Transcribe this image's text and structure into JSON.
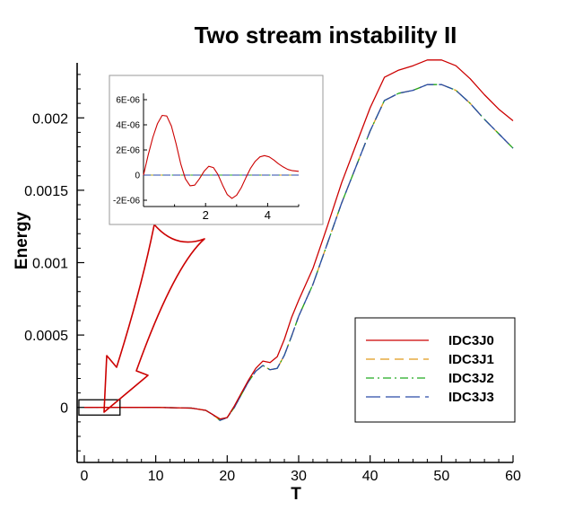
{
  "chart_data": {
    "type": "line",
    "title": "Two stream instability II",
    "xlabel": "T",
    "ylabel": "Energy",
    "xlim": [
      -1,
      60
    ],
    "ylim": [
      -0.00038,
      0.00238
    ],
    "xticks": [
      0,
      10,
      20,
      30,
      40,
      50,
      60
    ],
    "yticks": [
      0,
      0.0005,
      0.001,
      0.0015,
      0.002
    ],
    "ytick_labels": [
      "0",
      "0.0005",
      "0.001",
      "0.0015",
      "0.002"
    ],
    "legend_position": "bottom-right",
    "series": [
      {
        "name": "IDC3J0",
        "color": "#cc0000",
        "dash": "solid",
        "x": [
          0,
          2,
          5,
          10,
          15,
          17,
          18,
          19,
          20,
          21,
          22,
          23,
          24,
          25,
          26,
          27,
          28,
          29,
          30,
          32,
          34,
          36,
          38,
          40,
          42,
          44,
          46,
          48,
          50,
          52,
          54,
          56,
          58,
          60
        ],
        "y": [
          0,
          0,
          0,
          0,
          -5e-06,
          -2e-05,
          -5e-05,
          -8e-05,
          -7e-05,
          1e-05,
          0.0001,
          0.00019,
          0.00027,
          0.00032,
          0.00031,
          0.00035,
          0.00047,
          0.00062,
          0.00074,
          0.00096,
          0.00125,
          0.00155,
          0.00181,
          0.00207,
          0.00228,
          0.00233,
          0.00236,
          0.0024,
          0.0024,
          0.00236,
          0.00227,
          0.00216,
          0.00206,
          0.00198
        ]
      },
      {
        "name": "IDC3J1",
        "color": "#e09a1a",
        "dash": "dashed",
        "x": [
          0,
          2,
          5,
          10,
          15,
          17,
          18,
          19,
          20,
          21,
          22,
          23,
          24,
          25,
          26,
          27,
          28,
          29,
          30,
          32,
          34,
          36,
          38,
          40,
          42,
          44,
          46,
          48,
          50,
          52,
          54,
          56,
          58,
          60
        ],
        "y": [
          0,
          0,
          0,
          0,
          -5e-06,
          -2e-05,
          -5e-05,
          -9e-05,
          -7e-05,
          0,
          9e-05,
          0.00018,
          0.00025,
          0.00029,
          0.00026,
          0.00027,
          0.00036,
          0.00049,
          0.00063,
          0.00085,
          0.00113,
          0.00141,
          0.00166,
          0.00191,
          0.00212,
          0.00217,
          0.00219,
          0.00223,
          0.00223,
          0.00219,
          0.0021,
          0.00199,
          0.00189,
          0.00179
        ]
      },
      {
        "name": "IDC3J2",
        "color": "#22aa22",
        "dash": "dashdot",
        "x": [
          0,
          2,
          5,
          10,
          15,
          17,
          18,
          19,
          20,
          21,
          22,
          23,
          24,
          25,
          26,
          27,
          28,
          29,
          30,
          32,
          34,
          36,
          38,
          40,
          42,
          44,
          46,
          48,
          50,
          52,
          54,
          56,
          58,
          60
        ],
        "y": [
          0,
          0,
          0,
          0,
          -5e-06,
          -2e-05,
          -5e-05,
          -9e-05,
          -7e-05,
          0,
          9e-05,
          0.00018,
          0.00025,
          0.00029,
          0.00026,
          0.00027,
          0.00036,
          0.00049,
          0.00063,
          0.00085,
          0.00113,
          0.00141,
          0.00166,
          0.00191,
          0.00212,
          0.00217,
          0.00219,
          0.00223,
          0.00223,
          0.00219,
          0.0021,
          0.00199,
          0.00189,
          0.00179
        ]
      },
      {
        "name": "IDC3J3",
        "color": "#2a4aa8",
        "dash": "longdash",
        "x": [
          0,
          2,
          5,
          10,
          15,
          17,
          18,
          19,
          20,
          21,
          22,
          23,
          24,
          25,
          26,
          27,
          28,
          29,
          30,
          32,
          34,
          36,
          38,
          40,
          42,
          44,
          46,
          48,
          50,
          52,
          54,
          56,
          58,
          60
        ],
        "y": [
          0,
          0,
          0,
          0,
          -5e-06,
          -2e-05,
          -5e-05,
          -9e-05,
          -7e-05,
          0,
          9e-05,
          0.00018,
          0.00025,
          0.00029,
          0.00026,
          0.00027,
          0.00036,
          0.00049,
          0.00063,
          0.00085,
          0.00113,
          0.00141,
          0.00166,
          0.00191,
          0.00212,
          0.00217,
          0.00219,
          0.00223,
          0.00223,
          0.00219,
          0.0021,
          0.00199,
          0.00189,
          0.00179
        ]
      }
    ],
    "zoom_region": {
      "xlim": [
        0,
        5
      ],
      "ylim": [
        -2.8e-05,
        2.8e-05
      ]
    },
    "inset": {
      "type": "line",
      "xlim": [
        0,
        5
      ],
      "ylim": [
        -2.5e-06,
        6.5e-06
      ],
      "xticks": [
        2,
        4
      ],
      "xtick_labels": [
        "2",
        "4"
      ],
      "yticks": [
        -2e-06,
        0,
        2e-06,
        4e-06,
        6e-06
      ],
      "ytick_labels": [
        "-2E-06",
        "0",
        "2E-06",
        "4E-06",
        "6E-06"
      ],
      "series": [
        {
          "name": "IDC3J0",
          "color": "#cc0000",
          "dash": "solid",
          "x": [
            0,
            0.15,
            0.3,
            0.45,
            0.6,
            0.75,
            0.9,
            1.05,
            1.2,
            1.35,
            1.5,
            1.65,
            1.8,
            1.95,
            2.1,
            2.25,
            2.4,
            2.55,
            2.7,
            2.85,
            3.0,
            3.15,
            3.3,
            3.45,
            3.6,
            3.75,
            3.9,
            4.05,
            4.2,
            4.35,
            4.5,
            4.65,
            4.8,
            5.0
          ],
          "y": [
            0,
            1.6e-06,
            3e-06,
            4.1e-06,
            4.75e-06,
            4.7e-06,
            3.9e-06,
            2.5e-06,
            9e-07,
            -3e-07,
            -8.5e-07,
            -8e-07,
            -3e-07,
            3e-07,
            7e-07,
            6e-07,
            5e-08,
            -8e-07,
            -1.55e-06,
            -1.85e-06,
            -1.6e-06,
            -1e-06,
            -2e-07,
            5.5e-07,
            1.1e-06,
            1.45e-06,
            1.55e-06,
            1.45e-06,
            1.2e-06,
            9e-07,
            6.5e-07,
            4.5e-07,
            3.5e-07,
            3e-07
          ]
        },
        {
          "name": "IDC3J1",
          "color": "#e09a1a",
          "dash": "dashed",
          "x": [
            0,
            1,
            2,
            3,
            4,
            5
          ],
          "y": [
            0,
            0,
            0,
            0,
            0,
            0
          ]
        },
        {
          "name": "IDC3J2",
          "color": "#22aa22",
          "dash": "dashdot",
          "x": [
            0,
            1,
            2,
            3,
            4,
            5
          ],
          "y": [
            0,
            0,
            0,
            0,
            0,
            0
          ]
        },
        {
          "name": "IDC3J3",
          "color": "#2a4aa8",
          "dash": "longdash",
          "x": [
            0,
            1,
            2,
            3,
            4,
            5
          ],
          "y": [
            0,
            0,
            0,
            0,
            0,
            0
          ]
        }
      ]
    },
    "annotation": {
      "type": "arrow",
      "color": "#cc0000",
      "description": "hollow arrow from inset to zoom box"
    }
  }
}
